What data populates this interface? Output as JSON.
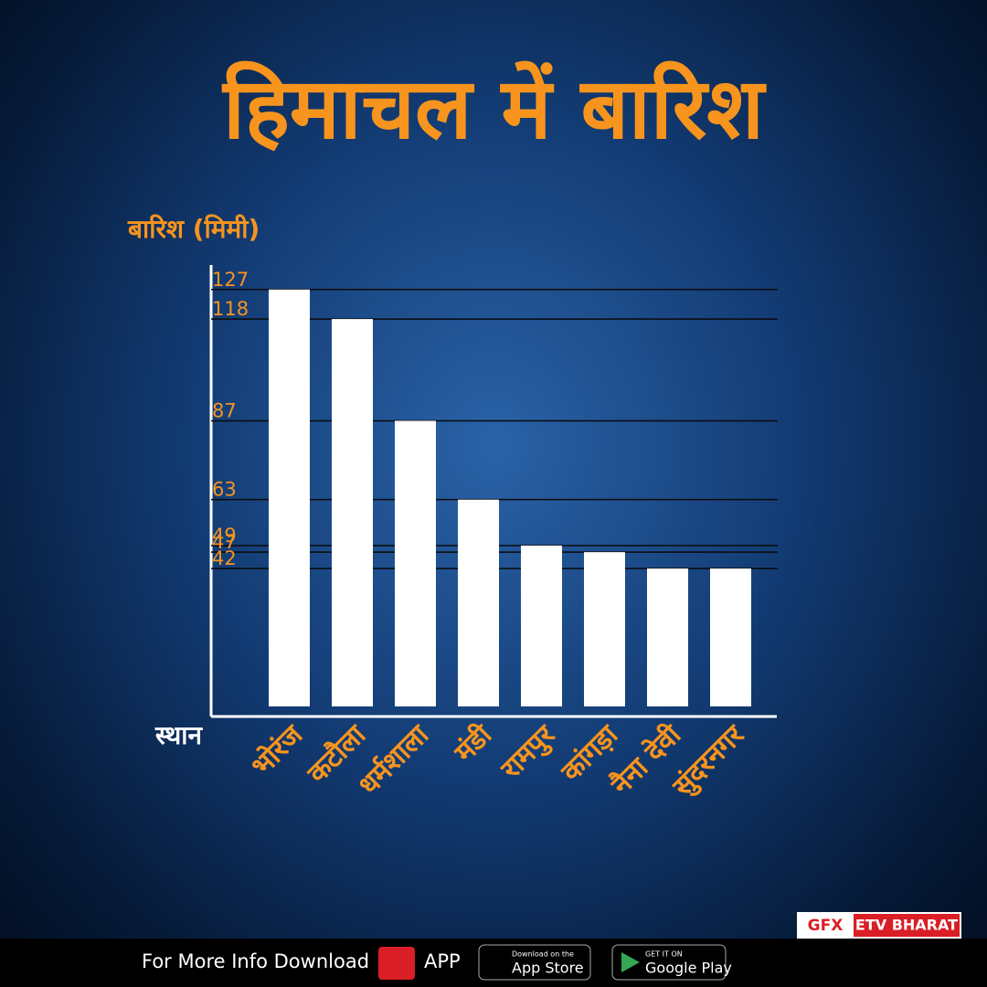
{
  "chart_data": {
    "type": "bar",
    "title": "हिमाचल में बारिश",
    "y_label": "बारिश (मिमी)",
    "x_label": "स्थान",
    "categories": [
      "भोरंज",
      "कटौला",
      "धर्मशाला",
      "मंडी",
      "रामपुर",
      "कांगड़ा",
      "नैना देवी",
      "सुंदरनगर"
    ],
    "values": [
      127,
      118,
      87,
      63,
      49,
      47,
      42,
      42
    ],
    "color": "#ffffff",
    "label_color": "#f7941d",
    "ylim": [
      0,
      130
    ],
    "yticks": [
      127,
      118,
      87,
      63,
      49,
      47,
      42
    ],
    "grid": true
  },
  "branding": {
    "gfx": "GFX",
    "name": "ETV BHARAT"
  },
  "footer": {
    "text": "For More Info Download",
    "app": "APP",
    "app_store_small": "Download on the",
    "app_store": "App Store",
    "google_small": "GET IT ON",
    "google": "Google Play"
  }
}
